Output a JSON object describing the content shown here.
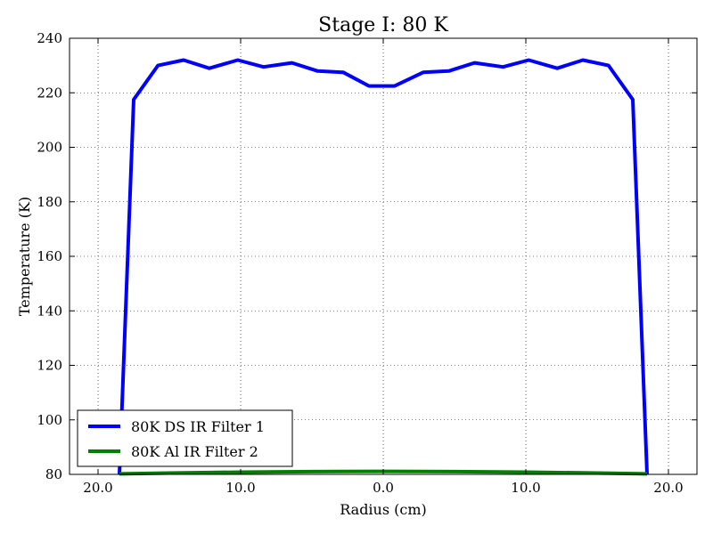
{
  "chart_data": {
    "type": "line",
    "title": "Stage I: 80 K",
    "xlabel": "Radius (cm)",
    "ylabel": "Temperature (K)",
    "xlim": [
      -22,
      22
    ],
    "ylim": [
      80,
      240
    ],
    "grid": true,
    "legend_position": "lower-left",
    "x_ticks": [
      {
        "value": -20,
        "label": "20.0"
      },
      {
        "value": -10,
        "label": "10.0"
      },
      {
        "value": 0,
        "label": "0.0"
      },
      {
        "value": 10,
        "label": "10.0"
      },
      {
        "value": 20,
        "label": "20.0"
      }
    ],
    "y_ticks": [
      80,
      100,
      120,
      140,
      160,
      180,
      200,
      220,
      240
    ],
    "series": [
      {
        "name": "80K DS IR Filter 1",
        "color": "#0000ff",
        "x": [
          -18.5,
          -17.5,
          -15.8,
          -14.0,
          -12.2,
          -10.2,
          -8.4,
          -6.4,
          -4.6,
          -2.8,
          -1.0,
          0.8,
          2.8,
          4.6,
          6.4,
          8.4,
          10.2,
          12.2,
          14.0,
          15.8,
          17.5,
          18.5
        ],
        "y": [
          80,
          217.5,
          230,
          232,
          229,
          232,
          229.5,
          231,
          228,
          227.5,
          222.5,
          222.5,
          227.5,
          228,
          231,
          229.5,
          232,
          229,
          232,
          230,
          217.5,
          80
        ]
      },
      {
        "name": "80K Al IR Filter 2",
        "color": "#008000",
        "x": [
          -18.5,
          -15,
          -10,
          -5,
          0,
          5,
          10,
          15,
          18.5
        ],
        "y": [
          80.2,
          80.5,
          80.8,
          81.0,
          81.1,
          81.0,
          80.8,
          80.5,
          80.2
        ]
      }
    ]
  }
}
